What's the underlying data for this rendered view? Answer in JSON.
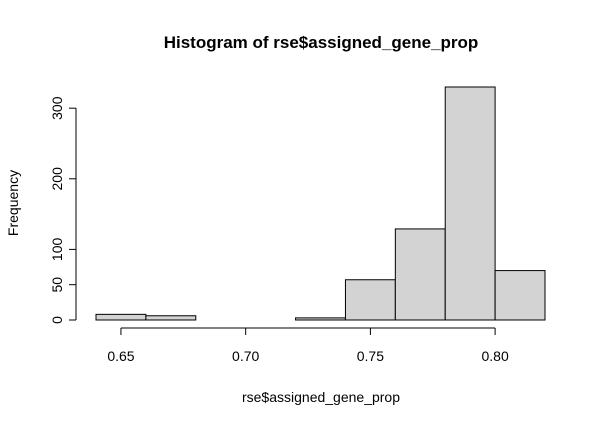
{
  "chart_data": {
    "type": "bar",
    "title": "Histogram of rse$assigned_gene_prop",
    "xlabel": "rse$assigned_gene_prop",
    "ylabel": "Frequency",
    "bins": [
      {
        "from": 0.64,
        "to": 0.66,
        "count": 8
      },
      {
        "from": 0.66,
        "to": 0.68,
        "count": 6
      },
      {
        "from": 0.68,
        "to": 0.7,
        "count": 0
      },
      {
        "from": 0.7,
        "to": 0.72,
        "count": 0
      },
      {
        "from": 0.72,
        "to": 0.74,
        "count": 3
      },
      {
        "from": 0.74,
        "to": 0.76,
        "count": 57
      },
      {
        "from": 0.76,
        "to": 0.78,
        "count": 129
      },
      {
        "from": 0.78,
        "to": 0.8,
        "count": 330
      },
      {
        "from": 0.8,
        "to": 0.82,
        "count": 70
      }
    ],
    "xlim": [
      0.64,
      0.82
    ],
    "ylim": [
      0,
      330
    ],
    "xticks": [
      0.65,
      0.7,
      0.75,
      0.8
    ],
    "xtick_labels": [
      "0.65",
      "0.70",
      "0.75",
      "0.80"
    ],
    "yticks": [
      0,
      50,
      100,
      200,
      300
    ],
    "ytick_labels": [
      "0",
      "50",
      "100",
      "200",
      "300"
    ],
    "bar_color": "#d3d3d3",
    "grid": false
  }
}
